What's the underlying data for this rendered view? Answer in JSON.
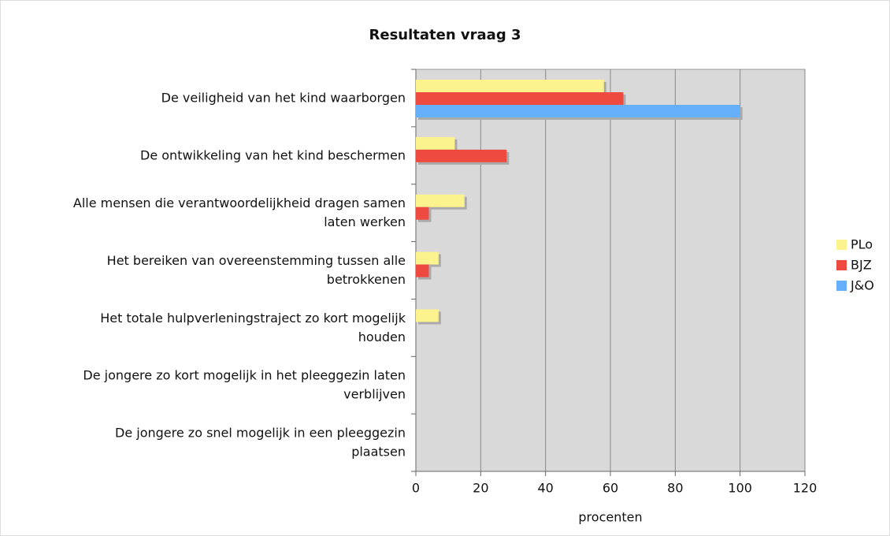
{
  "chart_data": {
    "type": "barh",
    "title": "Resultaten vraag 3",
    "categories": [
      "De veiligheid van het kind waarborgen",
      "De ontwikkeling van het kind beschermen",
      "Alle mensen die verantwoordelijkheid dragen samen\nlaten werken",
      "Het bereiken van overeenstemming tussen alle\nbetrokkenen",
      "Het totale hulpverleningstraject zo kort mogelijk\nhouden",
      "De jongere zo kort mogelijk in het pleeggezin laten\nverblijven",
      "De jongere zo snel mogelijk in een pleeggezin\nplaatsen"
    ],
    "series": [
      {
        "name": "PLo",
        "color": "#fcf28e",
        "values": [
          58,
          12,
          15,
          7,
          7,
          0,
          0
        ]
      },
      {
        "name": "BJZ",
        "color": "#ef4a3f",
        "values": [
          64,
          28,
          4,
          4,
          0,
          0,
          0
        ]
      },
      {
        "name": "J&O",
        "color": "#66b0fb",
        "values": [
          100,
          0,
          0,
          0,
          0,
          0,
          0
        ]
      }
    ],
    "xlabel": "procenten",
    "xlim": [
      0,
      120
    ],
    "xticks": [
      0,
      20,
      40,
      60,
      80,
      100,
      120
    ],
    "grid": true,
    "legend": "right"
  }
}
